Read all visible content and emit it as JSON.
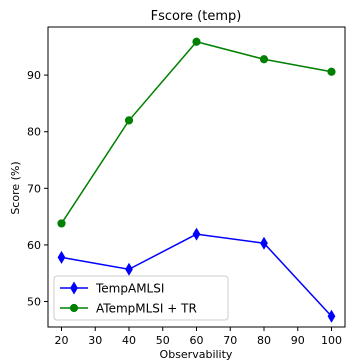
{
  "chart_data": {
    "type": "line",
    "title": "Fscore (temp)",
    "xlabel": "Observability",
    "ylabel": "Score (%)",
    "x": [
      20,
      40,
      60,
      80,
      100
    ],
    "xlim": [
      16,
      104
    ],
    "ylim": [
      45.5,
      98.5
    ],
    "xticks": [
      20,
      30,
      40,
      50,
      60,
      70,
      80,
      90,
      100
    ],
    "yticks": [
      50,
      60,
      70,
      80,
      90
    ],
    "grid": false,
    "legend_position": "lower-left",
    "series": [
      {
        "name": "TempAMLSI",
        "color": "#0000ff",
        "marker": "thin-diamond",
        "values": [
          57.8,
          55.7,
          61.9,
          60.3,
          47.4
        ]
      },
      {
        "name": "ATempMLSI + TR",
        "color": "#008000",
        "marker": "circle",
        "values": [
          63.8,
          82.0,
          95.9,
          92.8,
          90.6
        ]
      }
    ]
  }
}
